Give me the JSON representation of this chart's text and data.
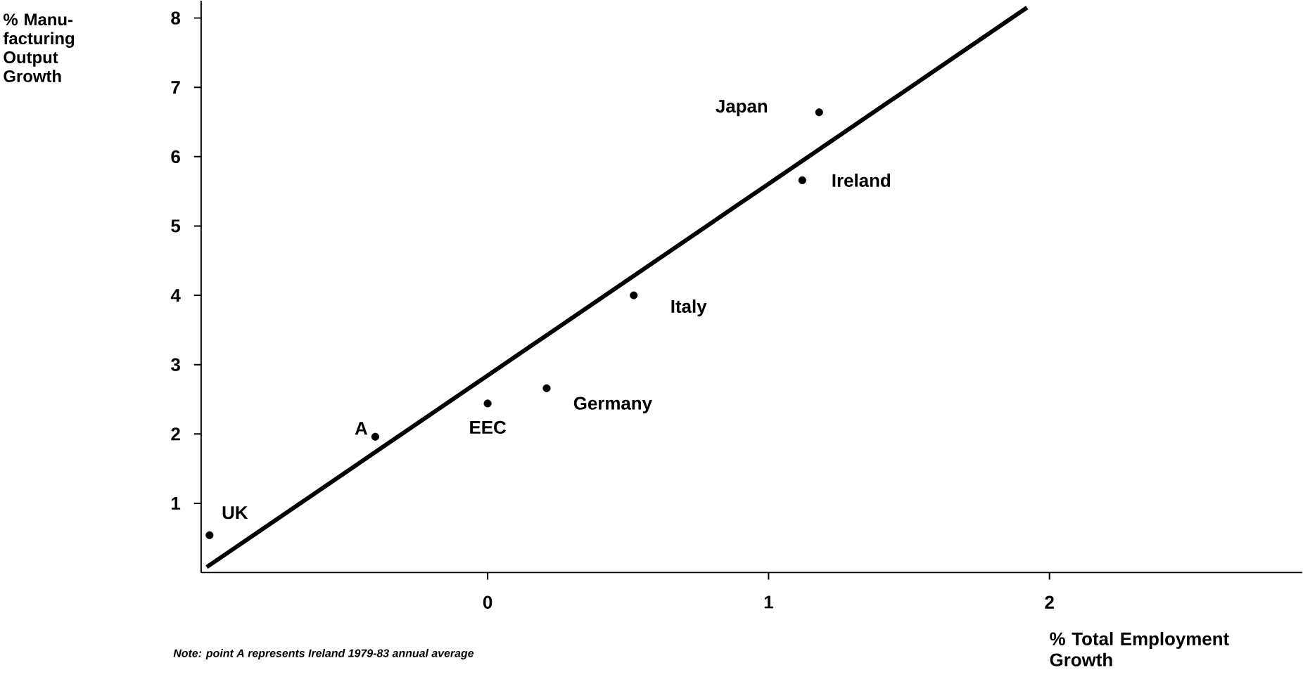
{
  "chart_data": {
    "type": "scatter",
    "xlabel": "% Total Employment Growth",
    "xlim": [
      -1.02,
      2.9
    ],
    "ylim": [
      0,
      8.25
    ],
    "xticks": [
      0,
      1,
      2
    ],
    "yticks": [
      1,
      2,
      3,
      4,
      5,
      6,
      7,
      8
    ],
    "grid": false,
    "series": [
      {
        "color": "#000000",
        "marker": "circle",
        "x": [
          -0.99,
          -0.4,
          0.0,
          0.21,
          0.52,
          1.12,
          1.18
        ],
        "values": [
          0.54,
          1.96,
          2.44,
          2.66,
          4.0,
          5.66,
          6.64
        ]
      },
      {
        "type": "line",
        "color": "#000000",
        "marker": "none",
        "x": [
          -1.0,
          1.92
        ],
        "values": [
          0.08,
          8.15
        ]
      }
    ],
    "annotations": [
      {
        "text": "UK",
        "x": -0.99,
        "y": 0.54
      },
      {
        "text": "A",
        "x": -0.4,
        "y": 1.96
      },
      {
        "text": "EEC",
        "x": 0.0,
        "y": 2.44
      },
      {
        "text": "Germany",
        "x": 0.21,
        "y": 2.66
      },
      {
        "text": "Italy",
        "x": 0.52,
        "y": 4.0
      },
      {
        "text": "Ireland",
        "x": 1.12,
        "y": 5.66
      },
      {
        "text": "Japan",
        "x": 1.18,
        "y": 6.64
      },
      "Note:  point A represents Ireland 1979-83 annual average",
      "% Manu-facturing Output Growth"
    ]
  }
}
